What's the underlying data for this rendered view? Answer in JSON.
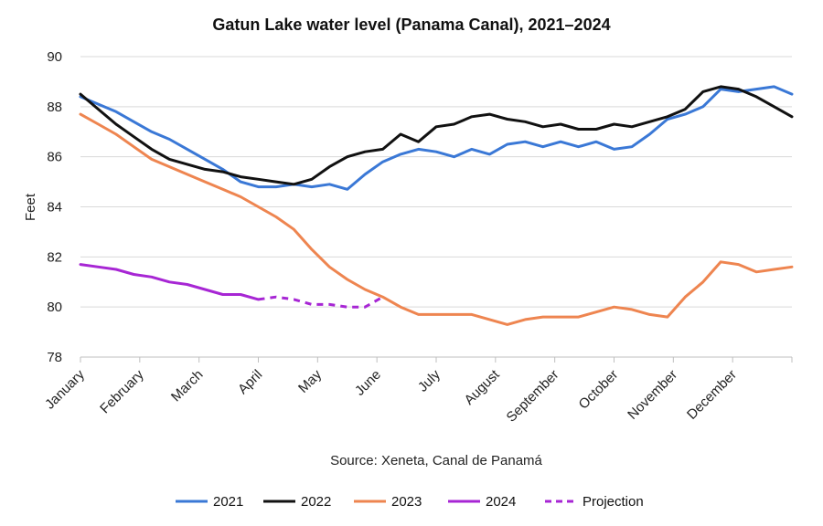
{
  "chart_data": {
    "type": "line",
    "title": "Gatun Lake water level (Panama Canal), 2021–2024",
    "ylabel": "Feet",
    "xlabel": "",
    "source": "Source: Xeneta, Canal de Panamá",
    "ylim": [
      78,
      90
    ],
    "yticks": [
      78,
      80,
      82,
      84,
      86,
      88,
      90
    ],
    "xlim": [
      0,
      12
    ],
    "x_unit": "month index (0 = start of January, 12 = end of December)",
    "categories": [
      "January",
      "February",
      "March",
      "April",
      "May",
      "June",
      "July",
      "August",
      "September",
      "October",
      "November",
      "December"
    ],
    "grid": true,
    "legend_position": "bottom",
    "series": [
      {
        "name": "2021",
        "color": "#3a78d6",
        "dashed": false,
        "x": [
          0,
          0.3,
          0.6,
          0.9,
          1.2,
          1.5,
          1.8,
          2.1,
          2.4,
          2.7,
          3.0,
          3.3,
          3.6,
          3.9,
          4.2,
          4.5,
          4.8,
          5.1,
          5.4,
          5.7,
          6.0,
          6.3,
          6.6,
          6.9,
          7.2,
          7.5,
          7.8,
          8.1,
          8.4,
          8.7,
          9.0,
          9.3,
          9.6,
          9.9,
          10.2,
          10.5,
          10.8,
          11.1,
          11.4,
          11.7,
          12.0
        ],
        "y": [
          88.4,
          88.1,
          87.8,
          87.4,
          87.0,
          86.7,
          86.3,
          85.9,
          85.5,
          85.0,
          84.8,
          84.8,
          84.9,
          84.8,
          84.9,
          84.7,
          85.3,
          85.8,
          86.1,
          86.3,
          86.2,
          86.0,
          86.3,
          86.1,
          86.5,
          86.6,
          86.4,
          86.6,
          86.4,
          86.6,
          86.3,
          86.4,
          86.9,
          87.5,
          87.7,
          88.0,
          88.7,
          88.6,
          88.7,
          88.8,
          88.5
        ]
      },
      {
        "name": "2022",
        "color": "#111111",
        "dashed": false,
        "x": [
          0,
          0.3,
          0.6,
          0.9,
          1.2,
          1.5,
          1.8,
          2.1,
          2.4,
          2.7,
          3.0,
          3.3,
          3.6,
          3.9,
          4.2,
          4.5,
          4.8,
          5.1,
          5.4,
          5.7,
          6.0,
          6.3,
          6.6,
          6.9,
          7.2,
          7.5,
          7.8,
          8.1,
          8.4,
          8.7,
          9.0,
          9.3,
          9.6,
          9.9,
          10.2,
          10.5,
          10.8,
          11.1,
          11.4,
          11.7,
          12.0
        ],
        "y": [
          88.5,
          87.9,
          87.3,
          86.8,
          86.3,
          85.9,
          85.7,
          85.5,
          85.4,
          85.2,
          85.1,
          85.0,
          84.9,
          85.1,
          85.6,
          86.0,
          86.2,
          86.3,
          86.9,
          86.6,
          87.2,
          87.3,
          87.6,
          87.7,
          87.5,
          87.4,
          87.2,
          87.3,
          87.1,
          87.1,
          87.3,
          87.2,
          87.4,
          87.6,
          87.9,
          88.6,
          88.8,
          88.7,
          88.4,
          88.0,
          87.6
        ]
      },
      {
        "name": "2023",
        "color": "#ee8550",
        "dashed": false,
        "x": [
          0,
          0.3,
          0.6,
          0.9,
          1.2,
          1.5,
          1.8,
          2.1,
          2.4,
          2.7,
          3.0,
          3.3,
          3.6,
          3.9,
          4.2,
          4.5,
          4.8,
          5.1,
          5.4,
          5.7,
          6.0,
          6.3,
          6.6,
          6.9,
          7.2,
          7.5,
          7.8,
          8.1,
          8.4,
          8.7,
          9.0,
          9.3,
          9.6,
          9.9,
          10.2,
          10.5,
          10.8,
          11.1,
          11.4,
          11.7,
          12.0
        ],
        "y": [
          87.7,
          87.3,
          86.9,
          86.4,
          85.9,
          85.6,
          85.3,
          85.0,
          84.7,
          84.4,
          84.0,
          83.6,
          83.1,
          82.3,
          81.6,
          81.1,
          80.7,
          80.4,
          80.0,
          79.7,
          79.7,
          79.7,
          79.7,
          79.5,
          79.3,
          79.5,
          79.6,
          79.6,
          79.6,
          79.8,
          80.0,
          79.9,
          79.7,
          79.6,
          80.4,
          81.0,
          81.8,
          81.7,
          81.4,
          81.5,
          81.6
        ]
      },
      {
        "name": "2024",
        "color": "#a726d4",
        "dashed": false,
        "x": [
          0,
          0.3,
          0.6,
          0.9,
          1.2,
          1.5,
          1.8,
          2.1,
          2.4,
          2.7,
          3.0
        ],
        "y": [
          81.7,
          81.6,
          81.5,
          81.3,
          81.2,
          81.0,
          80.9,
          80.7,
          80.5,
          80.5,
          80.3
        ]
      },
      {
        "name": "Projection",
        "color": "#a726d4",
        "dashed": true,
        "x": [
          3.0,
          3.3,
          3.6,
          3.9,
          4.2,
          4.5,
          4.8,
          5.1
        ],
        "y": [
          80.3,
          80.4,
          80.3,
          80.1,
          80.1,
          80.0,
          80.0,
          80.4
        ]
      }
    ]
  }
}
